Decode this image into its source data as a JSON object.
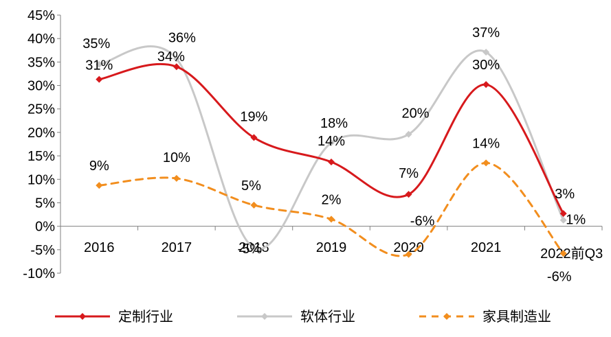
{
  "chart_data": {
    "type": "line",
    "categories": [
      "2016",
      "2017",
      "2018",
      "2019",
      "2020",
      "2021",
      "2022前Q3"
    ],
    "ylim": [
      -10,
      45
    ],
    "yticks": [
      -10,
      -5,
      0,
      5,
      10,
      15,
      20,
      25,
      30,
      35,
      40,
      45
    ],
    "ytick_labels": [
      "-10%",
      "-5%",
      "0%",
      "5%",
      "10%",
      "15%",
      "20%",
      "25%",
      "30%",
      "35%",
      "40%",
      "45%"
    ],
    "series": [
      {
        "name": "定制行业",
        "color": "#d7191c",
        "style": "solid",
        "marker": "diamond",
        "values": [
          31.3,
          34.0,
          18.9,
          13.7,
          6.8,
          30.2,
          2.7
        ],
        "labels": [
          "31%",
          "34%",
          "19%",
          "14%",
          "7%",
          "30%",
          "3%"
        ]
      },
      {
        "name": "软体行业",
        "color": "#c8c8c8",
        "style": "solid",
        "marker": "diamond",
        "values": [
          34.5,
          35.7,
          -4.6,
          17.8,
          19.6,
          37.1,
          1.3
        ],
        "labels": [
          "35%",
          "36%",
          "-5%",
          "18%",
          "20%",
          "37%",
          "1%"
        ]
      },
      {
        "name": "家具制造业",
        "color": "#f28e1e",
        "style": "dashed",
        "marker": "diamond",
        "values": [
          8.7,
          10.2,
          4.5,
          1.5,
          -6.0,
          13.5,
          -5.8
        ],
        "labels": [
          "9%",
          "10%",
          "5%",
          "2%",
          "-6%",
          "14%",
          "-6%"
        ]
      }
    ],
    "legend_position": "bottom",
    "grid": false
  }
}
